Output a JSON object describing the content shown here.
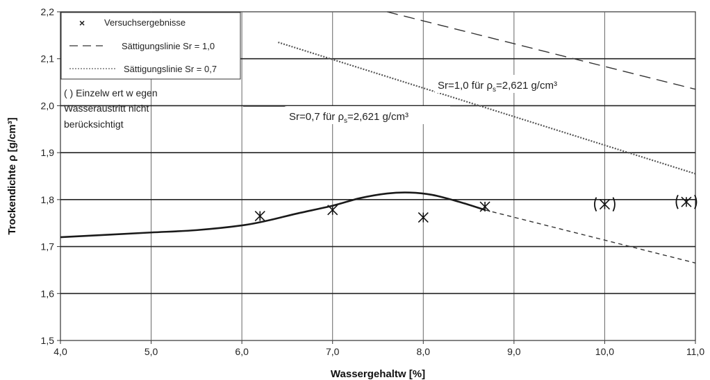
{
  "chart_data": {
    "type": "line",
    "xlabel": "Wassergehaltw [%]",
    "ylabel": "Trockendichte ρ [g/cm³]",
    "xlim": [
      4.0,
      11.0
    ],
    "ylim": [
      1.5,
      2.2
    ],
    "x_ticks": [
      "4,0",
      "5,0",
      "6,0",
      "7,0",
      "8,0",
      "9,0",
      "10,0",
      "11,0"
    ],
    "y_ticks": [
      "1,5",
      "1,6",
      "1,7",
      "1,8",
      "1,9",
      "2,0",
      "2,1",
      "2,2"
    ],
    "grid": true,
    "legend_position": "top-left",
    "legend": {
      "marker": "×",
      "versuch": "Versuchsergebnisse",
      "sat10": "Sättigungslinie Sr = 1,0",
      "sat07": "Sättigungslinie Sr = 0,7",
      "einzel_line1": "(   ) Einzelw ert w egen",
      "einzel_line2": "Wasseraustritt nicht",
      "einzel_line3": "berücksichtigt"
    },
    "series": [
      {
        "name": "Versuchsergebnisse",
        "kind": "scatter",
        "points": [
          {
            "x": 6.2,
            "y": 1.765,
            "excluded": false
          },
          {
            "x": 7.0,
            "y": 1.778,
            "excluded": false
          },
          {
            "x": 8.0,
            "y": 1.762,
            "excluded": false
          },
          {
            "x": 8.68,
            "y": 1.785,
            "excluded": false
          },
          {
            "x": 10.0,
            "y": 1.79,
            "excluded": true
          },
          {
            "x": 10.9,
            "y": 1.795,
            "excluded": true
          }
        ]
      },
      {
        "name": "Proctorkurve",
        "kind": "curve",
        "x": [
          4.0,
          4.5,
          5.0,
          5.5,
          6.0,
          6.3,
          6.6,
          7.0,
          7.3,
          7.6,
          7.85,
          8.1,
          8.4,
          8.68
        ],
        "y": [
          1.72,
          1.725,
          1.73,
          1.735,
          1.745,
          1.756,
          1.77,
          1.787,
          1.803,
          1.813,
          1.815,
          1.81,
          1.795,
          1.778
        ]
      },
      {
        "name": "Sättigungslinie Sr = 1,0",
        "kind": "dashed",
        "x": [
          7.6,
          11.0
        ],
        "y": [
          2.2,
          2.035
        ]
      },
      {
        "name": "Sättigungslinie Sr = 0,7",
        "kind": "dotted",
        "x": [
          6.4,
          11.0
        ],
        "y": [
          2.135,
          1.855
        ]
      },
      {
        "name": "Sättigungslinie Sr = 0,7 (unten)",
        "kind": "short-dashed",
        "x": [
          8.68,
          11.0
        ],
        "y": [
          1.778,
          1.665
        ]
      }
    ],
    "annotations": {
      "sr10_prefix": "Sr=1,0 für ρ",
      "sr10_sub": "s",
      "sr10_suffix": "=2,621 g/cm³",
      "sr07_prefix": "Sr=0,7 für ρ",
      "sr07_sub": "s",
      "sr07_suffix": "=2,621 g/cm³"
    }
  }
}
